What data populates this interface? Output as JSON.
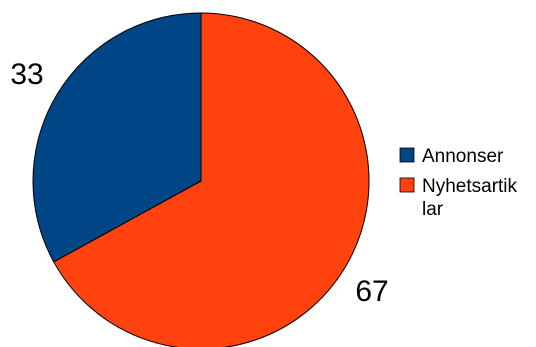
{
  "chart_data": {
    "type": "pie",
    "title": "",
    "categories": [
      "Annonser",
      "Nyhetsartiklar"
    ],
    "values": [
      33,
      67
    ],
    "data_labels": [
      "33",
      "67"
    ],
    "colors": [
      "#004586",
      "#ff420e"
    ],
    "start_angle": "12 o'clock",
    "direction": "counter-clockwise",
    "legend": {
      "position": "right",
      "entries": [
        {
          "lines": [
            "Annonser"
          ]
        },
        {
          "lines": [
            "Nyhetsartik",
            "lar"
          ]
        }
      ]
    }
  }
}
